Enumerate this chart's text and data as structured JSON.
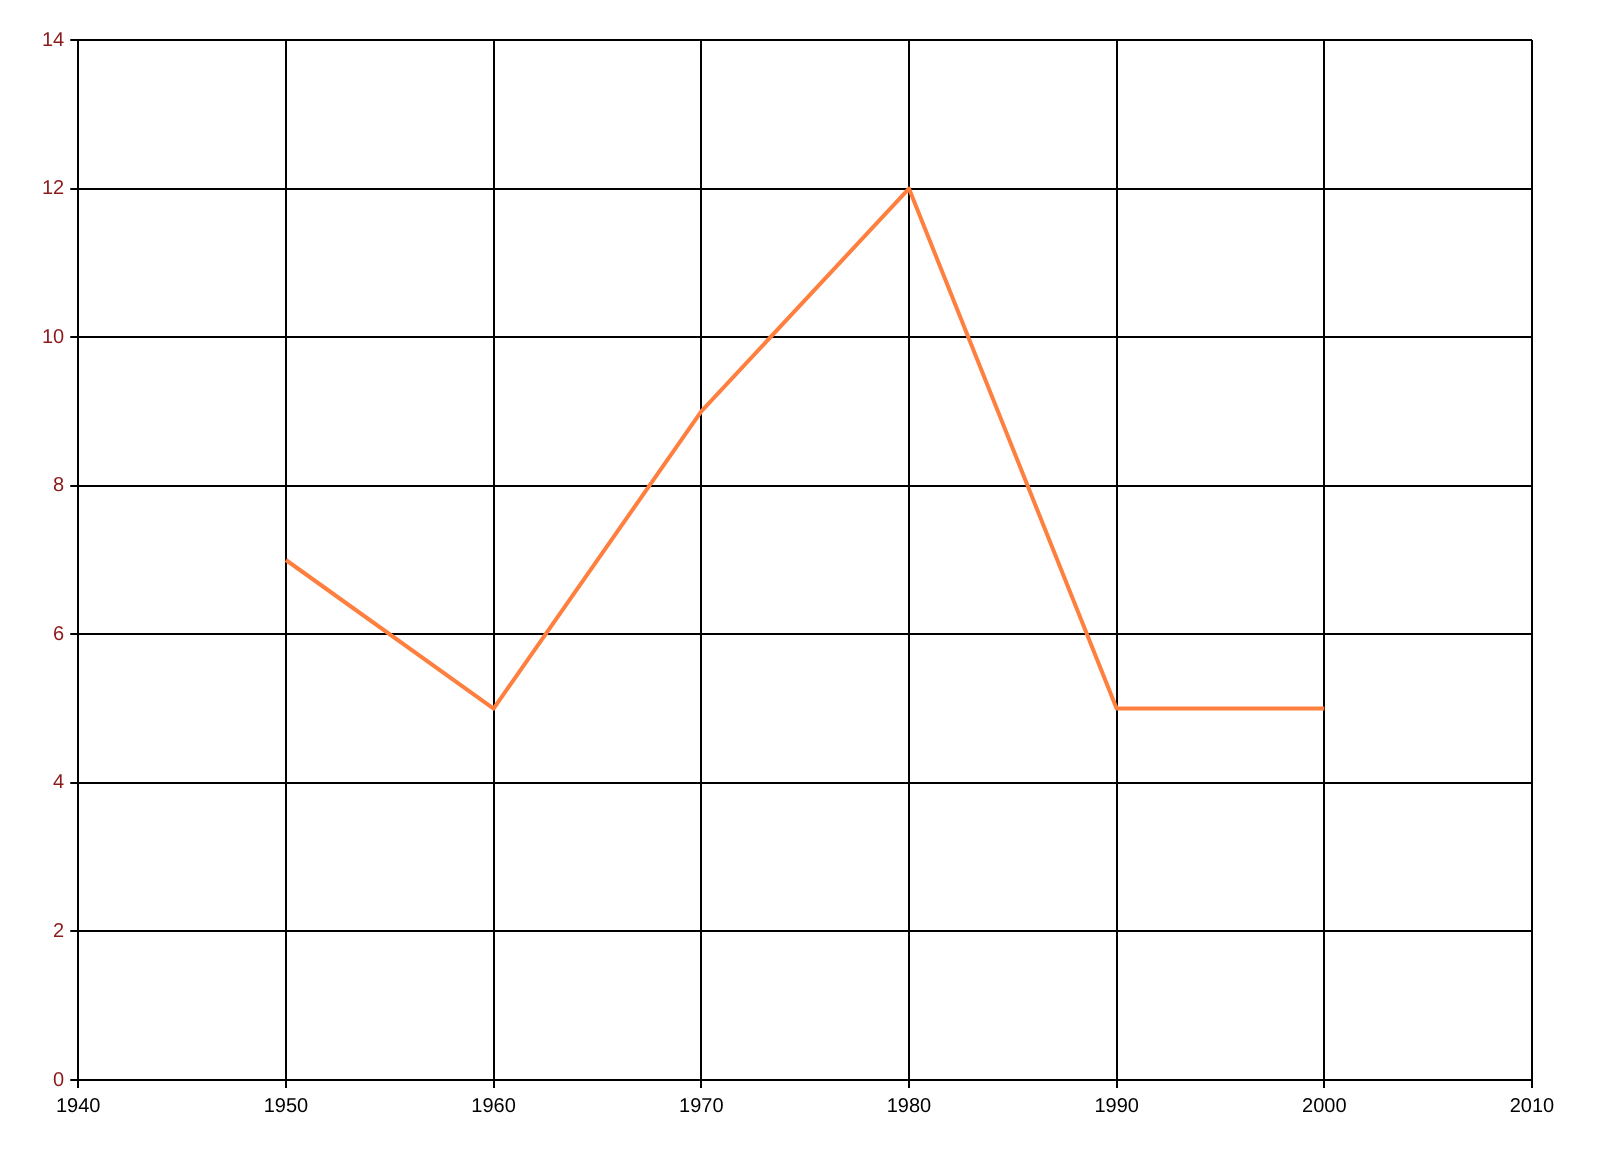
{
  "chart_data": {
    "type": "line",
    "x": [
      1950,
      1960,
      1970,
      1980,
      1990,
      2000
    ],
    "series": [
      {
        "color": "#ff7f3f",
        "values": [
          7,
          5,
          9,
          12,
          5,
          5
        ]
      }
    ],
    "xlim": [
      1940,
      2010
    ],
    "xticks": [
      1940,
      1950,
      1960,
      1970,
      1980,
      1990,
      2000,
      2010
    ],
    "ylim": [
      0,
      14
    ],
    "yticks": [
      0,
      2,
      4,
      6,
      8,
      10,
      12,
      14
    ],
    "grid": true,
    "legend": false,
    "marker": "none",
    "line_style": "solid"
  }
}
